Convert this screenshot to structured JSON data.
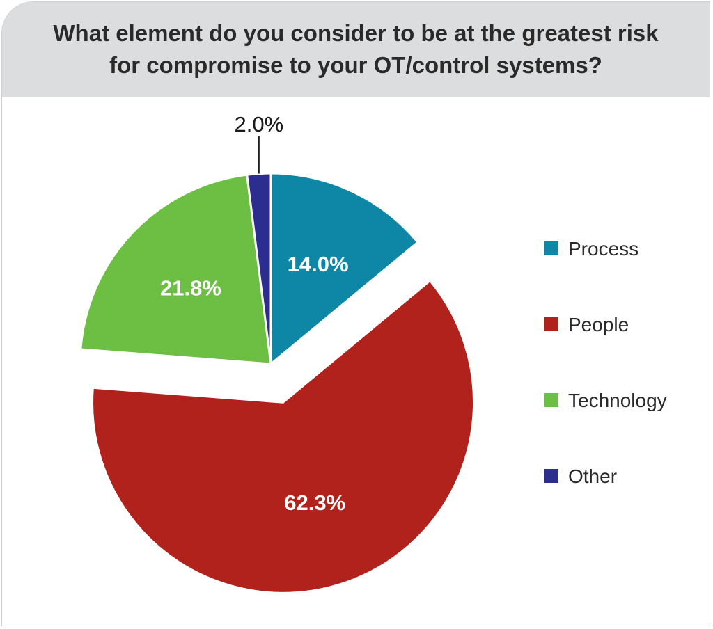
{
  "chart_data": {
    "type": "pie",
    "title_lines": [
      "What element do you consider to be at the greatest risk",
      "for compromise to your OT/control systems?"
    ],
    "slices": [
      {
        "label": "Process",
        "value": 14.0,
        "display": "14.0%",
        "color": "#0e87a6"
      },
      {
        "label": "People",
        "value": 62.3,
        "display": "62.3%",
        "color": "#b2221c",
        "exploded": true
      },
      {
        "label": "Technology",
        "value": 21.8,
        "display": "21.8%",
        "color": "#6cbf43"
      },
      {
        "label": "Other",
        "value": 2.0,
        "display": "2.0%",
        "color": "#2b2e8f",
        "callout": true
      }
    ],
    "legend_placement": "right"
  }
}
